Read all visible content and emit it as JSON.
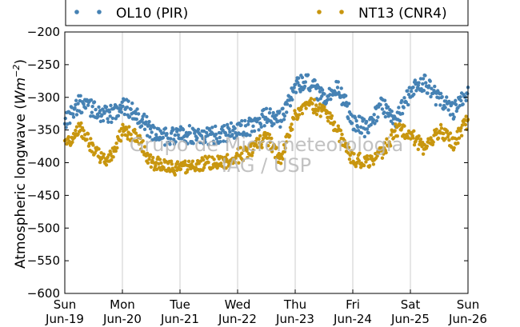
{
  "chart_data": {
    "type": "scatter",
    "title": "",
    "ylabel_text": "Atmospheric longwave (",
    "ylabel_unit_main": "Wm",
    "ylabel_unit_exp": "−2",
    "ylabel_close": ")",
    "xlabel": "",
    "ylim": [
      -600,
      -200
    ],
    "yticks": [
      -200,
      -250,
      -300,
      -350,
      -400,
      -450,
      -500,
      -550,
      -600
    ],
    "ytick_labels": [
      "−200",
      "−250",
      "−300",
      "−350",
      "−400",
      "−450",
      "−500",
      "−550",
      "−600"
    ],
    "xlim": [
      "2016-06-19",
      "2016-06-26"
    ],
    "xticks": [
      {
        "day": "Sun",
        "date": "Jun-19"
      },
      {
        "day": "Mon",
        "date": "Jun-20"
      },
      {
        "day": "Tue",
        "date": "Jun-21"
      },
      {
        "day": "Wed",
        "date": "Jun-22"
      },
      {
        "day": "Thu",
        "date": "Jun-23"
      },
      {
        "day": "Fri",
        "date": "Jun-24"
      },
      {
        "day": "Sat",
        "date": "Jun-25"
      },
      {
        "day": "Sun",
        "date": "Jun-26"
      }
    ],
    "grid": "vertical",
    "legend_position": "top",
    "watermark": [
      "Grupo de Micrometeorologia",
      "IAG / USP"
    ],
    "series": [
      {
        "name": "OL10 (PIR)",
        "color": "#4682b4",
        "x_day_offsets": [
          0,
          0.25,
          0.5,
          0.75,
          1,
          1.25,
          1.5,
          1.75,
          2,
          2.25,
          2.5,
          2.75,
          3,
          3.25,
          3.5,
          3.75,
          4,
          4.25,
          4.5,
          4.75,
          5,
          5.25,
          5.5,
          5.75,
          6,
          6.25,
          6.5,
          6.75,
          7
        ],
        "values": [
          -335,
          -310,
          -318,
          -330,
          -312,
          -325,
          -352,
          -360,
          -358,
          -357,
          -360,
          -355,
          -350,
          -345,
          -330,
          -335,
          -282,
          -278,
          -305,
          -285,
          -335,
          -350,
          -310,
          -335,
          -292,
          -275,
          -305,
          -320,
          -290
        ]
      },
      {
        "name": "NT13 (CNR4)",
        "color": "#c8960f",
        "x_day_offsets": [
          0,
          0.25,
          0.5,
          0.75,
          1,
          1.25,
          1.5,
          1.75,
          2,
          2.25,
          2.5,
          2.75,
          3,
          3.25,
          3.5,
          3.75,
          4,
          4.25,
          4.5,
          4.75,
          5,
          5.25,
          5.5,
          5.75,
          6,
          6.25,
          6.5,
          6.75,
          7
        ],
        "values": [
          -375,
          -345,
          -380,
          -400,
          -352,
          -358,
          -400,
          -405,
          -410,
          -403,
          -400,
          -400,
          -390,
          -380,
          -360,
          -395,
          -325,
          -312,
          -320,
          -355,
          -395,
          -398,
          -385,
          -350,
          -355,
          -380,
          -350,
          -370,
          -335
        ]
      }
    ]
  }
}
